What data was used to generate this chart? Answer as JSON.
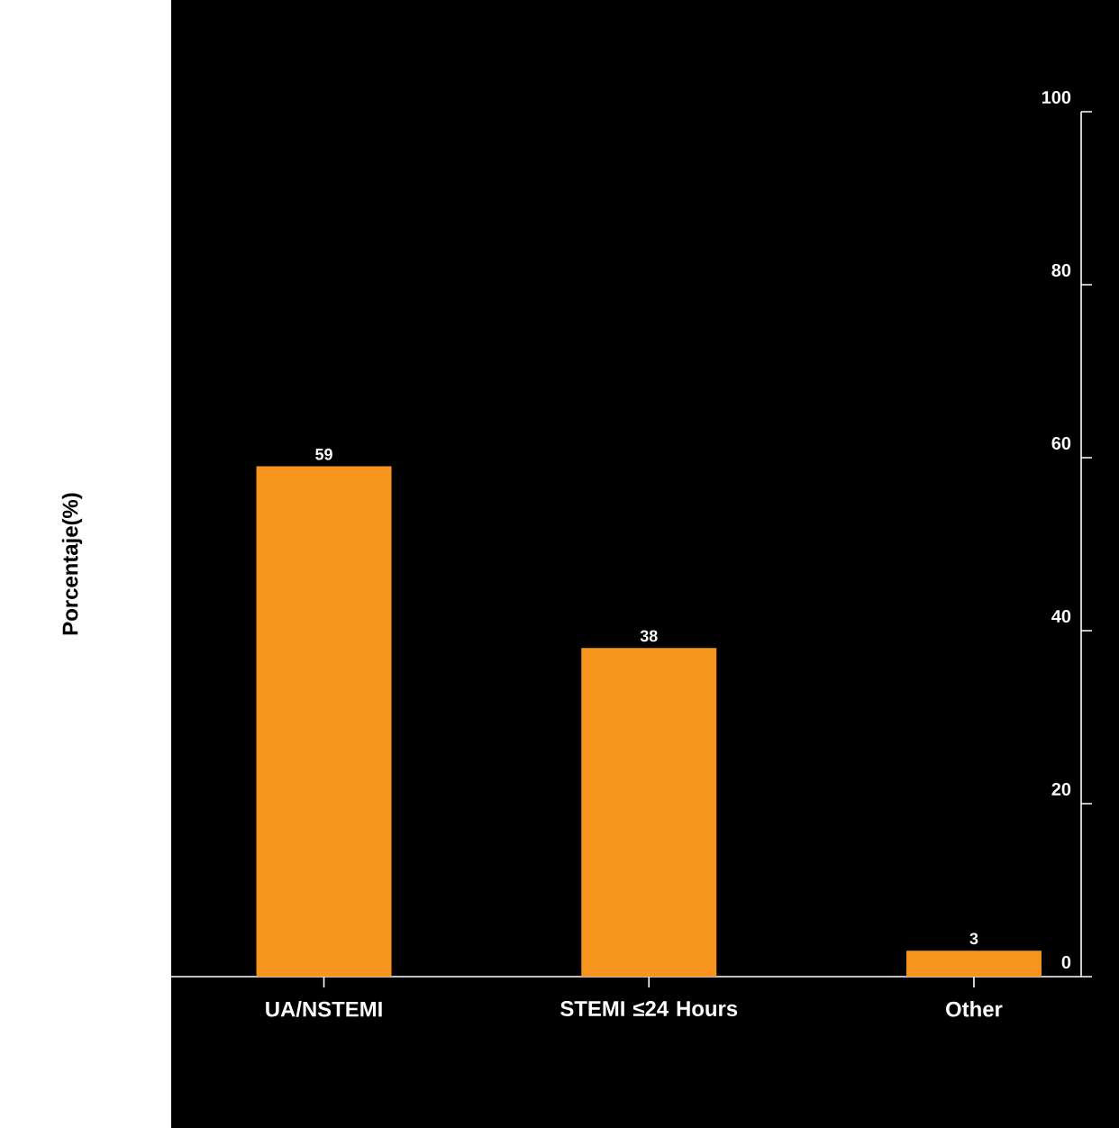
{
  "chart_data": {
    "type": "bar",
    "ylabel": "Porcentaje(%)",
    "categories": [
      "UA/NSTEMI",
      "STEMI ≤24 Hours",
      "Other"
    ],
    "values": [
      59,
      38,
      3
    ],
    "color": "#f7941d",
    "ylim": [
      0,
      100
    ],
    "yticks": [
      0,
      20,
      40,
      60,
      80,
      100
    ],
    "grid": false,
    "data_labels": true
  }
}
